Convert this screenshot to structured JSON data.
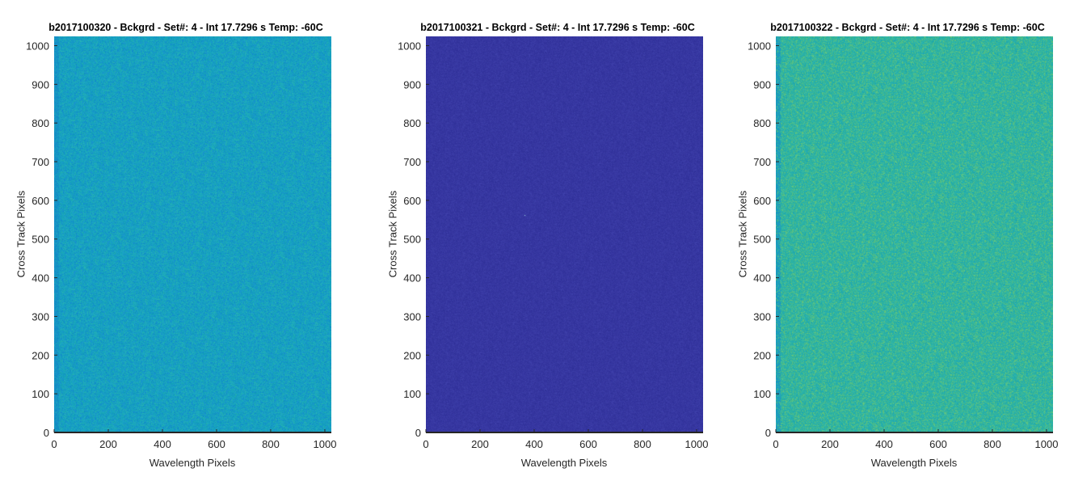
{
  "chart_data": [
    {
      "type": "heatmap",
      "title": "b2017100320 - Bckgrd - Set#: 4 - Int 17.7296 s Temp: -60C",
      "xlabel": "Wavelength Pixels",
      "ylabel": "Cross Track Pixels",
      "xlim": [
        0,
        1024
      ],
      "ylim": [
        0,
        1024
      ],
      "xticks": [
        0,
        200,
        400,
        600,
        800,
        1000
      ],
      "yticks": [
        0,
        100,
        200,
        300,
        400,
        500,
        600,
        700,
        800,
        900,
        1000
      ],
      "base_color": "#17a3bf",
      "noise_colors": [
        "#1899c8",
        "#23afb2",
        "#128fc9"
      ],
      "left_edge_color": "#158fc6",
      "grid": false
    },
    {
      "type": "heatmap",
      "title": "b2017100321 - Bckgrd - Set#: 4 - Int 17.7296 s Temp: -60C",
      "xlabel": "Wavelength Pixels",
      "ylabel": "Cross Track Pixels",
      "xlim": [
        0,
        1024
      ],
      "ylim": [
        0,
        1024
      ],
      "xticks": [
        0,
        200,
        400,
        600,
        800,
        1000
      ],
      "yticks": [
        0,
        100,
        200,
        300,
        400,
        500,
        600,
        700,
        800,
        900,
        1000
      ],
      "base_color": "#3636a0",
      "noise_colors": [
        "#3838a4",
        "#33349c",
        "#3a3ca6"
      ],
      "left_edge_color": "#3535a0",
      "hot_pixel": {
        "x": 365,
        "y": 562,
        "color": "#9fd6e0"
      },
      "grid": false
    },
    {
      "type": "heatmap",
      "title": "b2017100322 - Bckgrd - Set#: 4 - Int 17.7296 s Temp: -60C",
      "xlabel": "Wavelength Pixels",
      "ylabel": "Cross Track Pixels",
      "xlim": [
        0,
        1024
      ],
      "ylim": [
        0,
        1024
      ],
      "xticks": [
        0,
        200,
        400,
        600,
        800,
        1000
      ],
      "yticks": [
        0,
        100,
        200,
        300,
        400,
        500,
        600,
        700,
        800,
        900,
        1000
      ],
      "base_color": "#2db3a4",
      "noise_colors": [
        "#45bb8e",
        "#1fa9b4",
        "#5ec27c"
      ],
      "left_edge_color": "#1c9bbf",
      "grid": false
    }
  ]
}
